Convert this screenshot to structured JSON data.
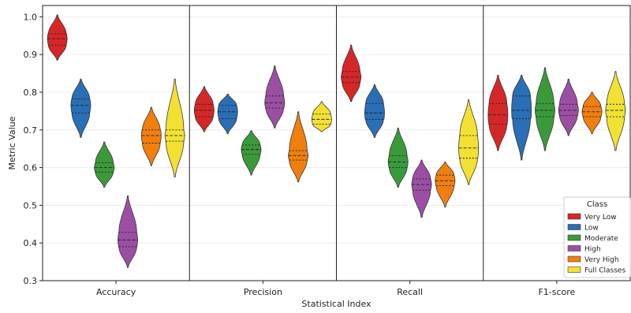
{
  "chart_data": {
    "type": "violin",
    "title": "",
    "xlabel": "Statistical Index",
    "ylabel": "Metric Value",
    "ylim": [
      0.3,
      1.03
    ],
    "yticks": [
      "0.3",
      "0.4",
      "0.5",
      "0.6",
      "0.7",
      "0.8",
      "0.9",
      "1.0"
    ],
    "grid": true,
    "categories": [
      "Accuracy",
      "Precision",
      "Recall",
      "F1-score"
    ],
    "legend": {
      "title": "Class",
      "placement": "lower-right",
      "entries": [
        "Very Low",
        "Low",
        "Moderate",
        "High",
        "Very High",
        "Full Classes"
      ]
    },
    "series": [
      {
        "name": "Very Low",
        "color": "#d62728",
        "values": [
          {
            "min": 0.885,
            "max": 1.005,
            "q1": 0.925,
            "median": 0.942,
            "q3": 0.955
          },
          {
            "min": 0.695,
            "max": 0.815,
            "q1": 0.735,
            "median": 0.752,
            "q3": 0.768
          },
          {
            "min": 0.775,
            "max": 0.925,
            "q1": 0.825,
            "median": 0.84,
            "q3": 0.855
          },
          {
            "min": 0.645,
            "max": 0.845,
            "q1": 0.715,
            "median": 0.74,
            "q3": 0.77
          }
        ]
      },
      {
        "name": "Low",
        "color": "#2a6eb5",
        "values": [
          {
            "min": 0.68,
            "max": 0.835,
            "q1": 0.745,
            "median": 0.765,
            "q3": 0.782
          },
          {
            "min": 0.69,
            "max": 0.795,
            "q1": 0.73,
            "median": 0.748,
            "q3": 0.765
          },
          {
            "min": 0.68,
            "max": 0.82,
            "q1": 0.728,
            "median": 0.745,
            "q3": 0.77
          },
          {
            "min": 0.62,
            "max": 0.845,
            "q1": 0.73,
            "median": 0.752,
            "q3": 0.79
          }
        ]
      },
      {
        "name": "Moderate",
        "color": "#3a9a3a",
        "values": [
          {
            "min": 0.548,
            "max": 0.668,
            "q1": 0.588,
            "median": 0.6,
            "q3": 0.613
          },
          {
            "min": 0.58,
            "max": 0.698,
            "q1": 0.635,
            "median": 0.648,
            "q3": 0.66
          },
          {
            "min": 0.548,
            "max": 0.705,
            "q1": 0.6,
            "median": 0.615,
            "q3": 0.632
          },
          {
            "min": 0.645,
            "max": 0.865,
            "q1": 0.735,
            "median": 0.752,
            "q3": 0.77
          }
        ]
      },
      {
        "name": "High",
        "color": "#9b4fa3",
        "values": [
          {
            "min": 0.335,
            "max": 0.525,
            "q1": 0.39,
            "median": 0.408,
            "q3": 0.428
          },
          {
            "min": 0.705,
            "max": 0.87,
            "q1": 0.758,
            "median": 0.772,
            "q3": 0.79
          },
          {
            "min": 0.468,
            "max": 0.62,
            "q1": 0.54,
            "median": 0.555,
            "q3": 0.57
          },
          {
            "min": 0.685,
            "max": 0.835,
            "q1": 0.738,
            "median": 0.752,
            "q3": 0.768
          }
        ]
      },
      {
        "name": "Very High",
        "color": "#f07f0e",
        "values": [
          {
            "min": 0.605,
            "max": 0.76,
            "q1": 0.665,
            "median": 0.685,
            "q3": 0.7
          },
          {
            "min": 0.562,
            "max": 0.748,
            "q1": 0.62,
            "median": 0.632,
            "q3": 0.645
          },
          {
            "min": 0.495,
            "max": 0.615,
            "q1": 0.552,
            "median": 0.565,
            "q3": 0.58
          },
          {
            "min": 0.69,
            "max": 0.8,
            "q1": 0.735,
            "median": 0.748,
            "q3": 0.762
          }
        ]
      },
      {
        "name": "Full Classes",
        "color": "#f2e132",
        "values": [
          {
            "min": 0.575,
            "max": 0.835,
            "q1": 0.67,
            "median": 0.685,
            "q3": 0.7
          },
          {
            "min": 0.695,
            "max": 0.775,
            "q1": 0.715,
            "median": 0.728,
            "q3": 0.742
          },
          {
            "min": 0.555,
            "max": 0.78,
            "q1": 0.625,
            "median": 0.652,
            "q3": 0.685
          },
          {
            "min": 0.645,
            "max": 0.855,
            "q1": 0.735,
            "median": 0.752,
            "q3": 0.768
          }
        ]
      }
    ]
  }
}
